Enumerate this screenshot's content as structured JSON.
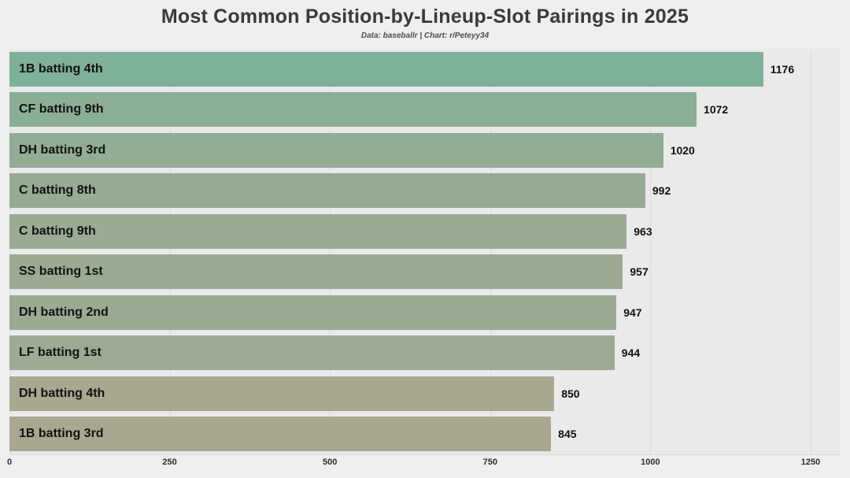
{
  "page": {
    "background": "#efefef",
    "plot_background": "#eaeaea",
    "gridline_color": "#dcdcdc"
  },
  "chart_data": {
    "type": "bar",
    "orientation": "horizontal",
    "title": "Most Common Position-by-Lineup-Slot Pairings in 2025",
    "subtitle": "Data: baseballr | Chart: r/Peteyy34",
    "xlabel": "",
    "ylabel": "",
    "xlim": [
      0,
      1250
    ],
    "x_ticks": [
      "0",
      "250",
      "500",
      "750",
      "1000",
      "1250"
    ],
    "grid": true,
    "legend": false,
    "value_labels": true,
    "categories": [
      "1B batting 4th",
      "CF batting 9th",
      "DH batting 3rd",
      "C batting 8th",
      "C batting 9th",
      "SS batting 1st",
      "DH batting 2nd",
      "LF batting 1st",
      "DH batting 4th",
      "1B batting 3rd"
    ],
    "values": [
      1176,
      1072,
      1020,
      992,
      963,
      957,
      947,
      944,
      850,
      845
    ],
    "bar_colors": [
      "#7cb298",
      "#8aaf95",
      "#91ad94",
      "#95ac93",
      "#99ac92",
      "#9aab92",
      "#9bab92",
      "#9cab92",
      "#a8a88f",
      "#a9a88f"
    ],
    "label_color": "#111111",
    "value_label_color": "#111111",
    "tick_label_color": "#2e2e2e"
  }
}
